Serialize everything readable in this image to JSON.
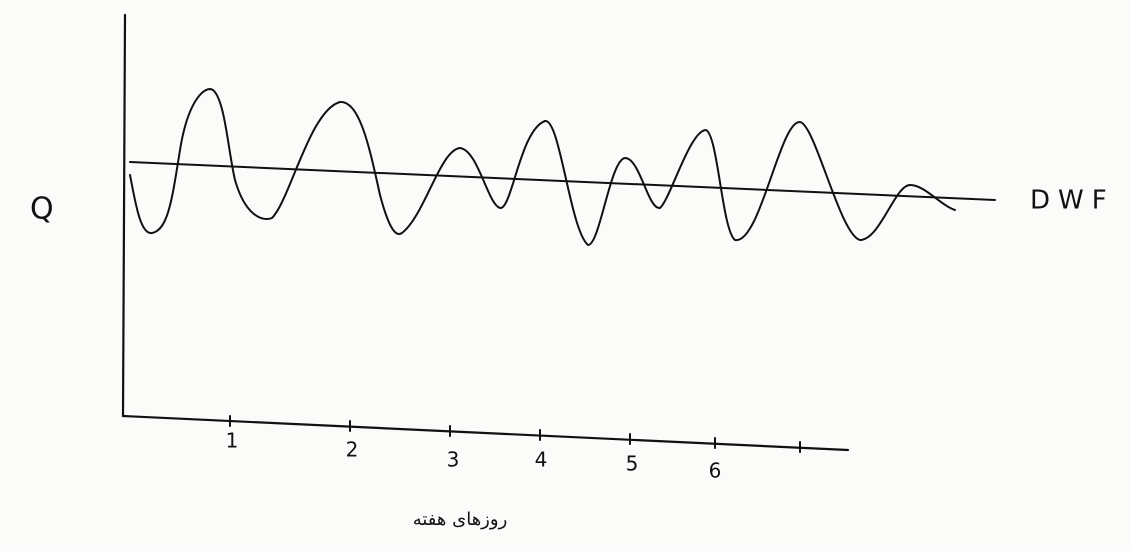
{
  "labels": {
    "y_axis": "Q",
    "reference_line": "DWF",
    "x_axis": "روزهای هفته"
  },
  "x_ticks": [
    "1",
    "2",
    "3",
    "4",
    "5",
    "6"
  ]
}
